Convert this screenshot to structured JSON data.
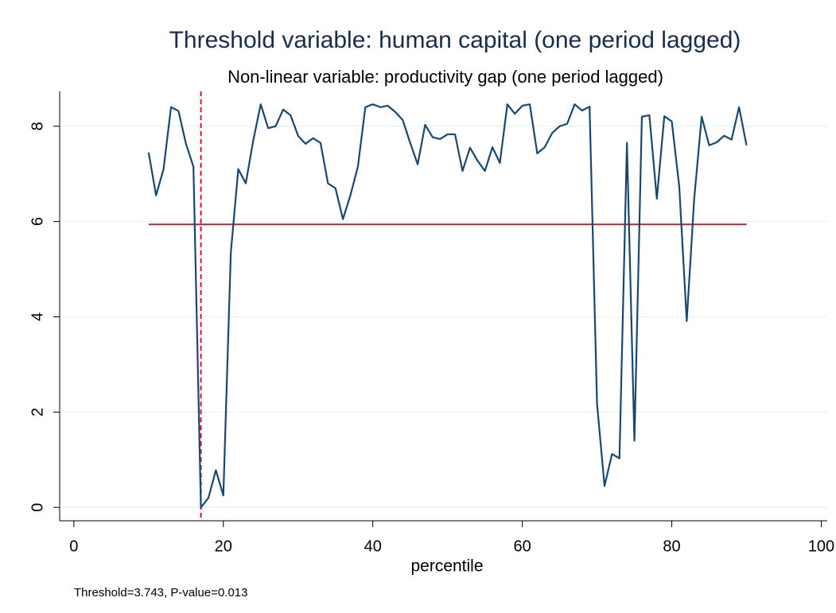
{
  "chart_data": {
    "type": "line",
    "title": "Threshold variable: human capital (one period lagged)",
    "subtitle": "Non-linear variable: productivity gap (one period lagged)",
    "x_label": "percentile",
    "note": "Threshold=3.743, P-value=0.013",
    "x": [
      10,
      11,
      12,
      13,
      14,
      15,
      16,
      17,
      18,
      19,
      20,
      21,
      22,
      23,
      24,
      25,
      26,
      27,
      28,
      29,
      30,
      31,
      32,
      33,
      34,
      35,
      36,
      37,
      38,
      39,
      40,
      41,
      42,
      43,
      44,
      45,
      46,
      47,
      48,
      49,
      50,
      51,
      52,
      53,
      54,
      55,
      56,
      57,
      58,
      59,
      60,
      61,
      62,
      63,
      64,
      65,
      66,
      67,
      68,
      69,
      70,
      71,
      72,
      73,
      74,
      75,
      76,
      77,
      78,
      79,
      80,
      81,
      82,
      83,
      84,
      85,
      86,
      87,
      88,
      89,
      90
    ],
    "series": [
      {
        "color": "#1a476f",
        "values": [
          7.45,
          6.55,
          7.1,
          8.4,
          8.32,
          7.63,
          7.15,
          0.0,
          0.2,
          0.78,
          0.25,
          5.35,
          7.1,
          6.8,
          7.7,
          8.46,
          7.96,
          8.0,
          8.35,
          8.23,
          7.8,
          7.63,
          7.75,
          7.65,
          6.8,
          6.7,
          6.05,
          6.55,
          7.15,
          8.4,
          8.46,
          8.4,
          8.43,
          8.3,
          8.13,
          7.65,
          7.2,
          8.03,
          7.77,
          7.73,
          7.83,
          7.83,
          7.06,
          7.55,
          7.28,
          7.06,
          7.56,
          7.23,
          8.46,
          8.26,
          8.43,
          8.46,
          7.43,
          7.56,
          7.86,
          8.0,
          8.05,
          8.46,
          8.33,
          8.41,
          2.17,
          0.45,
          1.12,
          1.03,
          7.65,
          1.4,
          8.2,
          8.23,
          6.48,
          8.21,
          8.1,
          6.73,
          3.91,
          6.48,
          8.2,
          7.6,
          7.66,
          7.8,
          7.72,
          8.4,
          7.6
        ]
      }
    ],
    "reference_lines": [
      {
        "axis": "y",
        "value": 5.94,
        "from": 10,
        "to": 90,
        "color": "#90353b",
        "dashed": false
      },
      {
        "axis": "x",
        "value": 17,
        "color": "#e0102a",
        "dashed": true
      }
    ],
    "xlim": [
      -1.9,
      100.8
    ],
    "xticks": [
      0,
      20,
      40,
      60,
      80,
      100
    ],
    "ylim": [
      -0.28,
      8.73
    ],
    "yticks": [
      0,
      2,
      4,
      6,
      8
    ],
    "grid": true
  }
}
